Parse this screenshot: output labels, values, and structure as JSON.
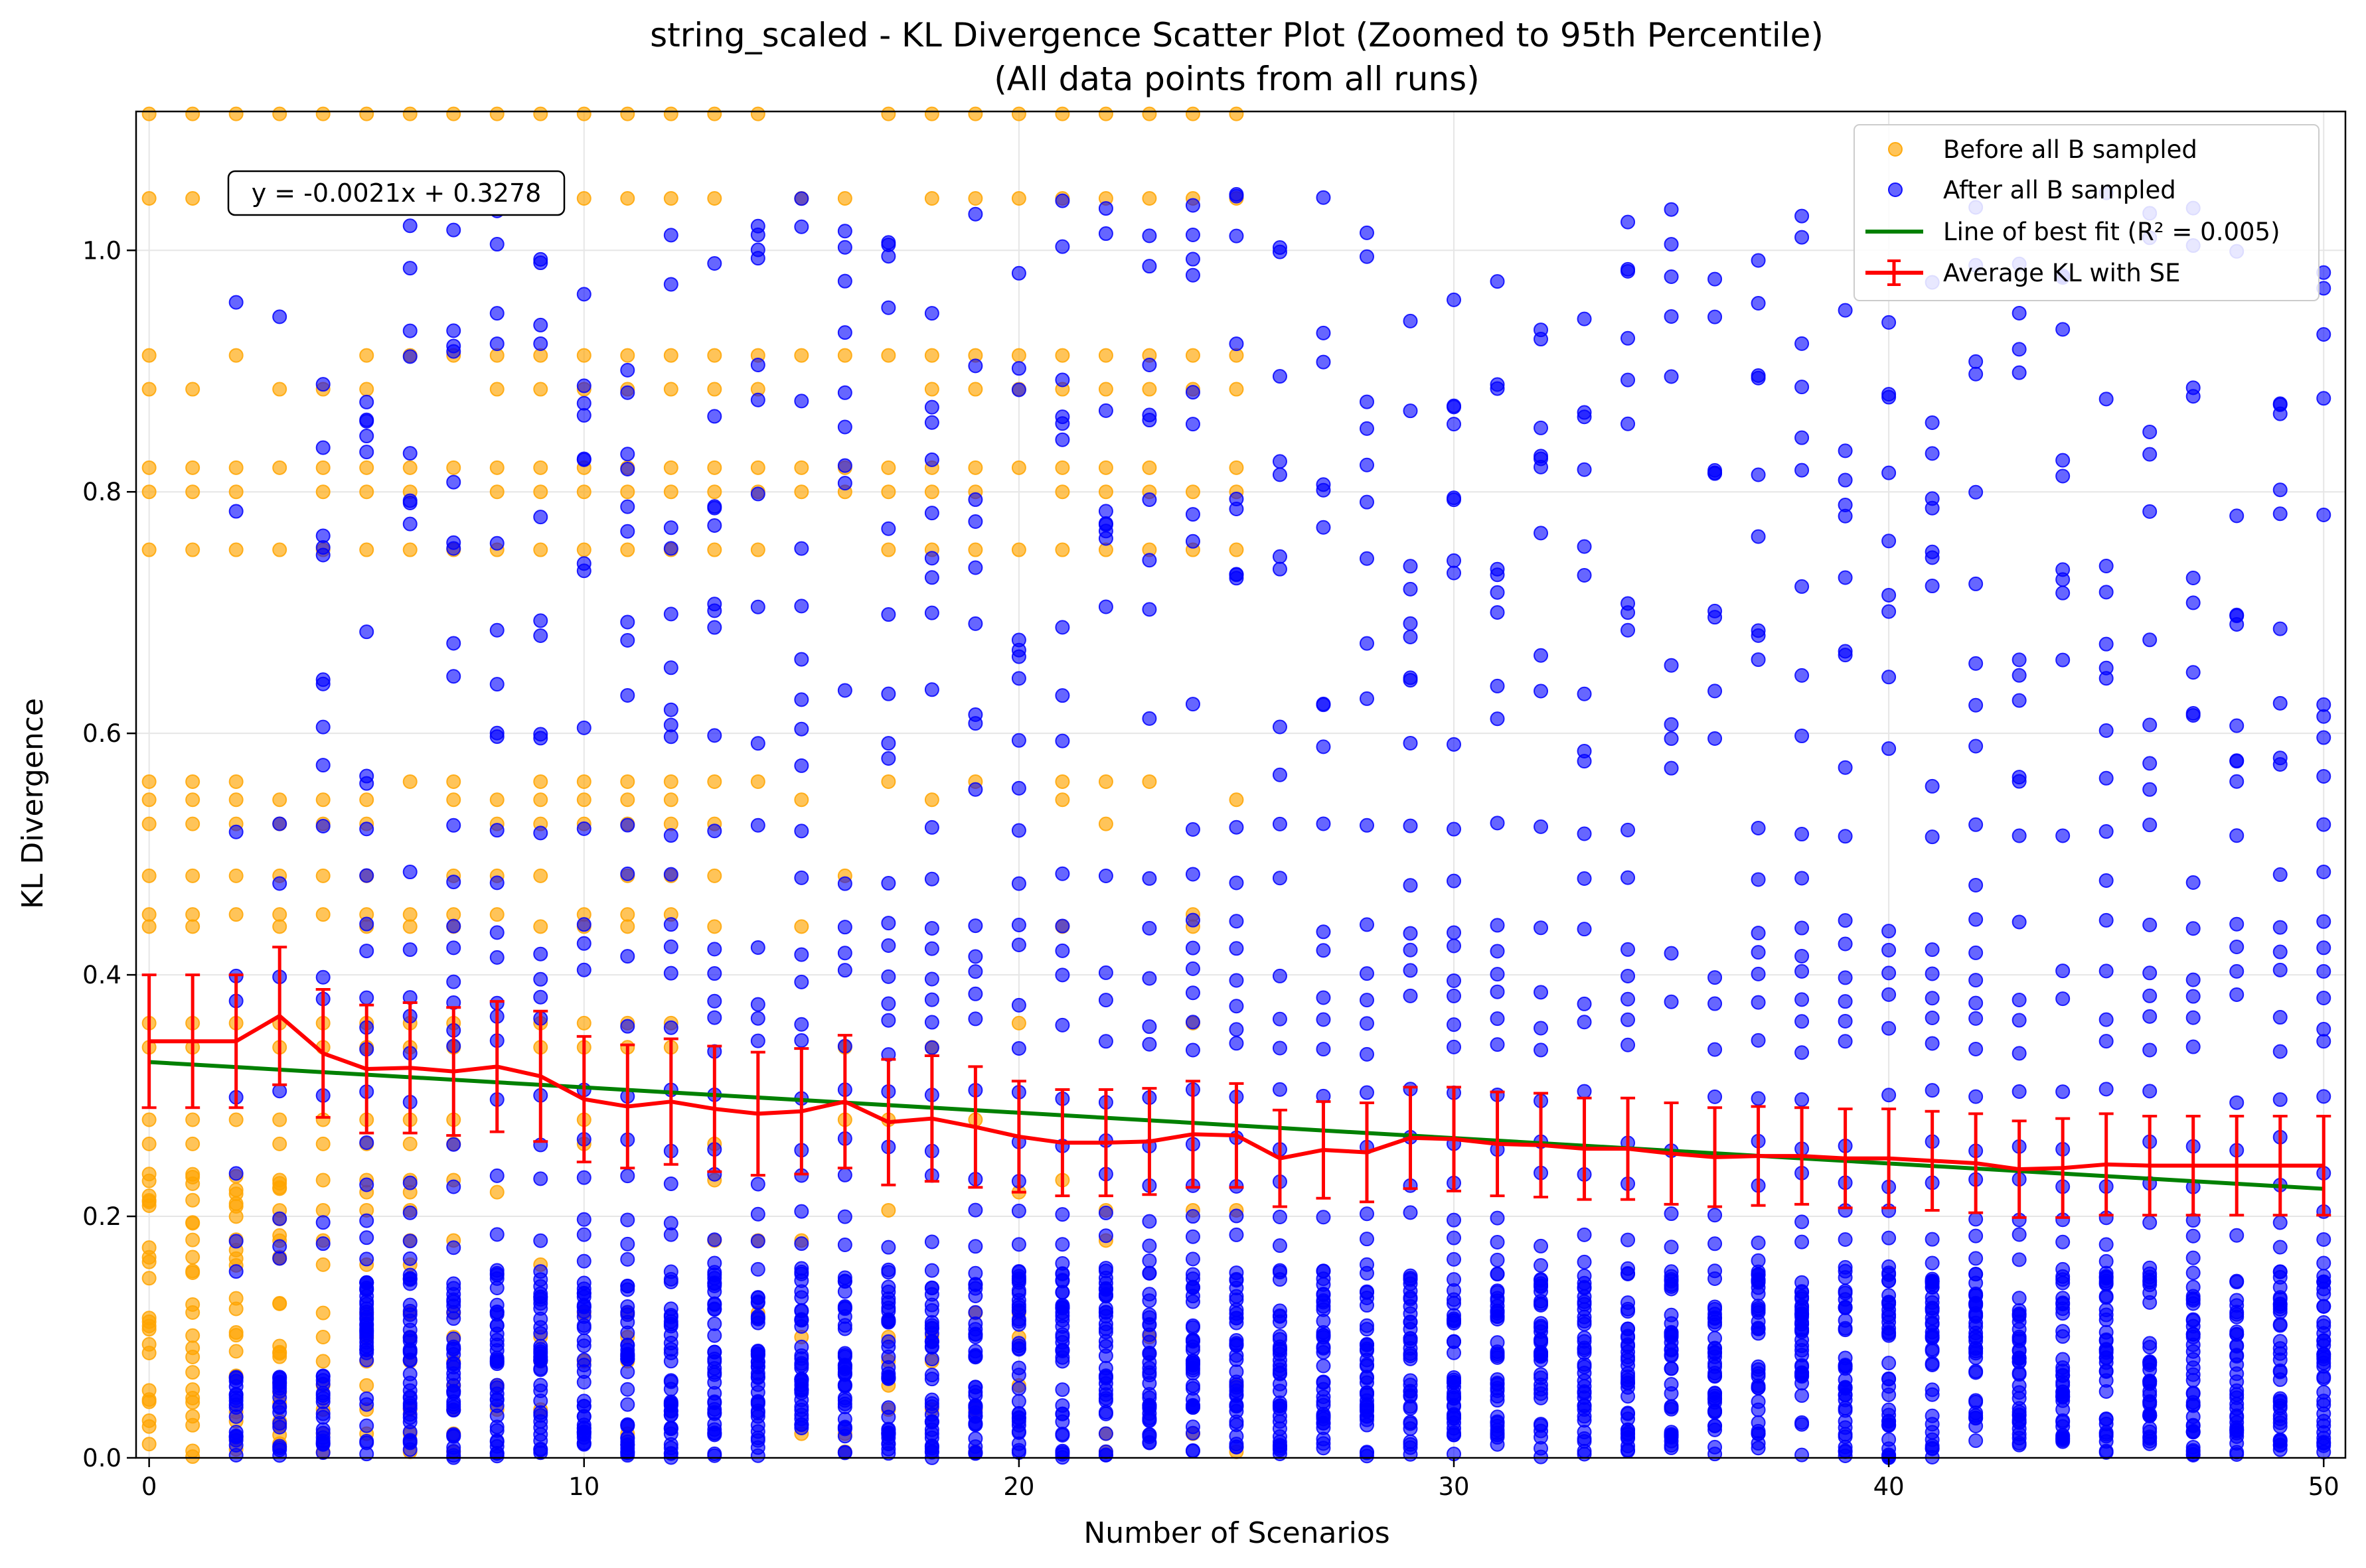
{
  "chart_data": {
    "type": "scatter",
    "title": "string_scaled - KL Divergence Scatter Plot (Zoomed to 95th Percentile)",
    "subtitle": "(All data points from all runs)",
    "xlabel": "Number of Scenarios",
    "ylabel": "KL Divergence",
    "xlim": [
      -0.3,
      50.5
    ],
    "ylim": [
      0.0,
      1.115
    ],
    "grid": true,
    "x_ticks": [
      0,
      10,
      20,
      30,
      40,
      50
    ],
    "y_ticks": [
      0.0,
      0.2,
      0.4,
      0.6,
      0.8,
      1.0
    ],
    "x_tick_labels": [
      "0",
      "10",
      "20",
      "30",
      "40",
      "50"
    ],
    "y_tick_labels": [
      "0.0",
      "0.2",
      "0.4",
      "0.6",
      "0.8",
      "1.0"
    ],
    "annotation": "y = -0.0021x + 0.3278",
    "legend_position": "top-right",
    "legend": [
      "Before all B sampled",
      "After all B sampled",
      "Line of best fit (R² = 0.005)",
      "Average KL with SE"
    ],
    "colors": {
      "before": "#ffa500",
      "after": "#0000ff",
      "fit": "#008000",
      "average": "#ff0000",
      "grid": "#e6e6e6"
    },
    "before_levels": {
      "x_range": [
        0,
        25
      ],
      "common_values": [
        1.113,
        1.043,
        0.913,
        0.885,
        0.82,
        0.8,
        0.752,
        0.56,
        0.545,
        0.525,
        0.482,
        0.45,
        0.44,
        0.36,
        0.34,
        0.28,
        0.26,
        0.23,
        0.22,
        0.205,
        0.18,
        0.16,
        0.12,
        0.1,
        0.08,
        0.06,
        0.04,
        0.02,
        0.005
      ]
    },
    "after_levels": {
      "x_range": [
        2,
        50
      ],
      "common_values": [
        0.52,
        0.48,
        0.44,
        0.42,
        0.4,
        0.38,
        0.36,
        0.34,
        0.3,
        0.26,
        0.23,
        0.2,
        0.18,
        0.16,
        0.14,
        0.12,
        0.1,
        0.08,
        0.06,
        0.04,
        0.02,
        0.005
      ]
    },
    "best_fit": {
      "name": "Line of best fit (R² = 0.005)",
      "slope": -0.0021,
      "intercept": 0.3278,
      "x_range": [
        0,
        50
      ]
    },
    "average": {
      "name": "Average KL with SE",
      "x": [
        0,
        1,
        2,
        3,
        4,
        5,
        6,
        7,
        8,
        9,
        10,
        11,
        12,
        13,
        14,
        15,
        16,
        17,
        18,
        19,
        20,
        21,
        22,
        23,
        24,
        25,
        26,
        27,
        28,
        29,
        30,
        31,
        32,
        33,
        34,
        35,
        36,
        37,
        38,
        39,
        40,
        41,
        42,
        43,
        44,
        45,
        46,
        47,
        48,
        49,
        50
      ],
      "y": [
        0.345,
        0.345,
        0.345,
        0.366,
        0.335,
        0.322,
        0.323,
        0.32,
        0.324,
        0.316,
        0.297,
        0.291,
        0.295,
        0.289,
        0.285,
        0.287,
        0.295,
        0.278,
        0.281,
        0.274,
        0.266,
        0.261,
        0.261,
        0.262,
        0.268,
        0.267,
        0.248,
        0.255,
        0.253,
        0.265,
        0.264,
        0.26,
        0.259,
        0.256,
        0.256,
        0.252,
        0.249,
        0.25,
        0.25,
        0.248,
        0.248,
        0.246,
        0.244,
        0.239,
        0.24,
        0.243,
        0.242,
        0.242,
        0.242,
        0.242,
        0.242
      ],
      "se": [
        0.055,
        0.055,
        0.055,
        0.057,
        0.053,
        0.053,
        0.054,
        0.053,
        0.054,
        0.054,
        0.052,
        0.051,
        0.052,
        0.052,
        0.051,
        0.052,
        0.055,
        0.052,
        0.052,
        0.05,
        0.046,
        0.044,
        0.044,
        0.044,
        0.044,
        0.043,
        0.04,
        0.04,
        0.041,
        0.042,
        0.043,
        0.043,
        0.043,
        0.042,
        0.042,
        0.042,
        0.041,
        0.041,
        0.04,
        0.041,
        0.041,
        0.041,
        0.041,
        0.04,
        0.041,
        0.042,
        0.041,
        0.041,
        0.041,
        0.041,
        0.041
      ]
    }
  }
}
